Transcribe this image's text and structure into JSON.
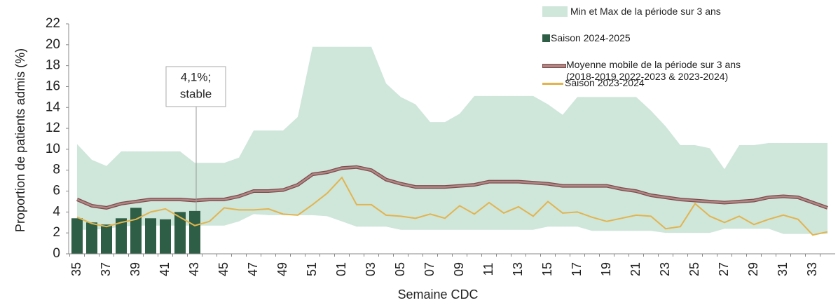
{
  "chart_data": {
    "type": "combo",
    "y_label": "Proportion de patients admis (%)",
    "x_label": "Semaine CDC",
    "annotation": [
      "4,1%;",
      "stable"
    ],
    "categories": [
      "35",
      null,
      "37",
      null,
      "39",
      null,
      "41",
      null,
      "43",
      null,
      "45",
      null,
      "47",
      null,
      "49",
      null,
      "51",
      null,
      "01",
      null,
      "03",
      null,
      "05",
      null,
      "07",
      null,
      "09",
      null,
      "11",
      null,
      "13",
      null,
      "15",
      null,
      "17",
      null,
      "19",
      null,
      "21",
      null,
      "23",
      null,
      "25",
      null,
      "27",
      null,
      "29",
      null,
      "31",
      null,
      "33",
      null
    ],
    "ylim": [
      0,
      22
    ],
    "yticks": [
      0,
      2,
      4,
      6,
      8,
      10,
      12,
      14,
      16,
      18,
      20,
      22
    ],
    "band": {
      "name": "Min et Max de la période sur 3 ans",
      "color": "#cfe6da",
      "max": [
        10.5,
        9.0,
        8.4,
        9.8,
        9.8,
        9.8,
        9.8,
        9.8,
        8.7,
        8.7,
        8.7,
        9.2,
        11.8,
        11.8,
        11.8,
        13.1,
        19.8,
        19.8,
        19.8,
        19.8,
        19.8,
        16.3,
        15.0,
        14.3,
        12.6,
        12.6,
        13.4,
        15.1,
        15.1,
        15.1,
        15.1,
        15.1,
        14.3,
        13.3,
        15.0,
        15.0,
        15.0,
        15.0,
        15.0,
        13.7,
        12.2,
        10.4,
        10.4,
        10.1,
        8.1,
        10.4,
        10.4,
        10.6,
        10.6,
        10.6,
        10.6,
        10.6
      ],
      "min": [
        2.3,
        2.3,
        2.4,
        2.6,
        2.7,
        2.7,
        2.7,
        2.7,
        2.7,
        2.7,
        2.7,
        3.1,
        3.8,
        3.7,
        3.7,
        3.7,
        3.7,
        3.6,
        3.1,
        2.6,
        2.6,
        2.6,
        2.3,
        2.3,
        2.3,
        2.3,
        2.3,
        2.3,
        2.3,
        2.3,
        2.3,
        2.3,
        2.6,
        2.6,
        2.6,
        2.2,
        2.2,
        2.2,
        2.2,
        2.2,
        2.0,
        2.0,
        2.0,
        2.0,
        2.4,
        2.4,
        2.4,
        2.4,
        1.9,
        1.9,
        1.9,
        1.9
      ]
    },
    "series": [
      {
        "name": "Saison 2024-2025",
        "type": "bar",
        "color": "#2e5e45",
        "values": [
          3.4,
          3.0,
          2.8,
          3.4,
          4.4,
          3.4,
          3.3,
          4.0,
          4.1,
          null,
          null,
          null,
          null,
          null,
          null,
          null,
          null,
          null,
          null,
          null,
          null,
          null,
          null,
          null,
          null,
          null,
          null,
          null,
          null,
          null,
          null,
          null,
          null,
          null,
          null,
          null,
          null,
          null,
          null,
          null,
          null,
          null,
          null,
          null,
          null,
          null,
          null,
          null,
          null,
          null,
          null,
          null
        ]
      },
      {
        "name": "Moyenne mobile de la période sur 3 ans (2018-2019 2022-2023 & 2023-2024)",
        "type": "line",
        "color": "#b38686",
        "values": [
          5.2,
          4.6,
          4.4,
          4.8,
          5.0,
          5.2,
          5.2,
          5.2,
          5.1,
          5.2,
          5.2,
          5.5,
          6.0,
          6.0,
          6.1,
          6.6,
          7.6,
          7.8,
          8.2,
          8.3,
          8.0,
          7.1,
          6.7,
          6.4,
          6.4,
          6.4,
          6.5,
          6.6,
          6.9,
          6.9,
          6.9,
          6.8,
          6.7,
          6.5,
          6.5,
          6.5,
          6.5,
          6.2,
          6.0,
          5.6,
          5.4,
          5.2,
          5.1,
          5.0,
          4.9,
          5.0,
          5.1,
          5.4,
          5.5,
          5.4,
          4.9,
          4.4
        ]
      },
      {
        "name": "Saison 2023-2024",
        "type": "line",
        "color": "#e2b44e",
        "values": [
          3.5,
          2.9,
          2.6,
          3.0,
          3.3,
          4.0,
          4.3,
          3.5,
          2.7,
          3.1,
          4.4,
          4.2,
          4.2,
          4.3,
          3.8,
          3.7,
          4.7,
          5.8,
          7.3,
          4.7,
          4.7,
          3.7,
          3.6,
          3.4,
          3.8,
          3.4,
          4.6,
          3.8,
          4.9,
          3.9,
          4.5,
          3.6,
          5.0,
          3.9,
          4.0,
          3.5,
          3.1,
          3.4,
          3.7,
          3.6,
          2.4,
          2.6,
          4.8,
          3.6,
          3.0,
          3.6,
          2.8,
          3.3,
          3.7,
          3.3,
          1.8,
          2.1
        ]
      }
    ]
  }
}
